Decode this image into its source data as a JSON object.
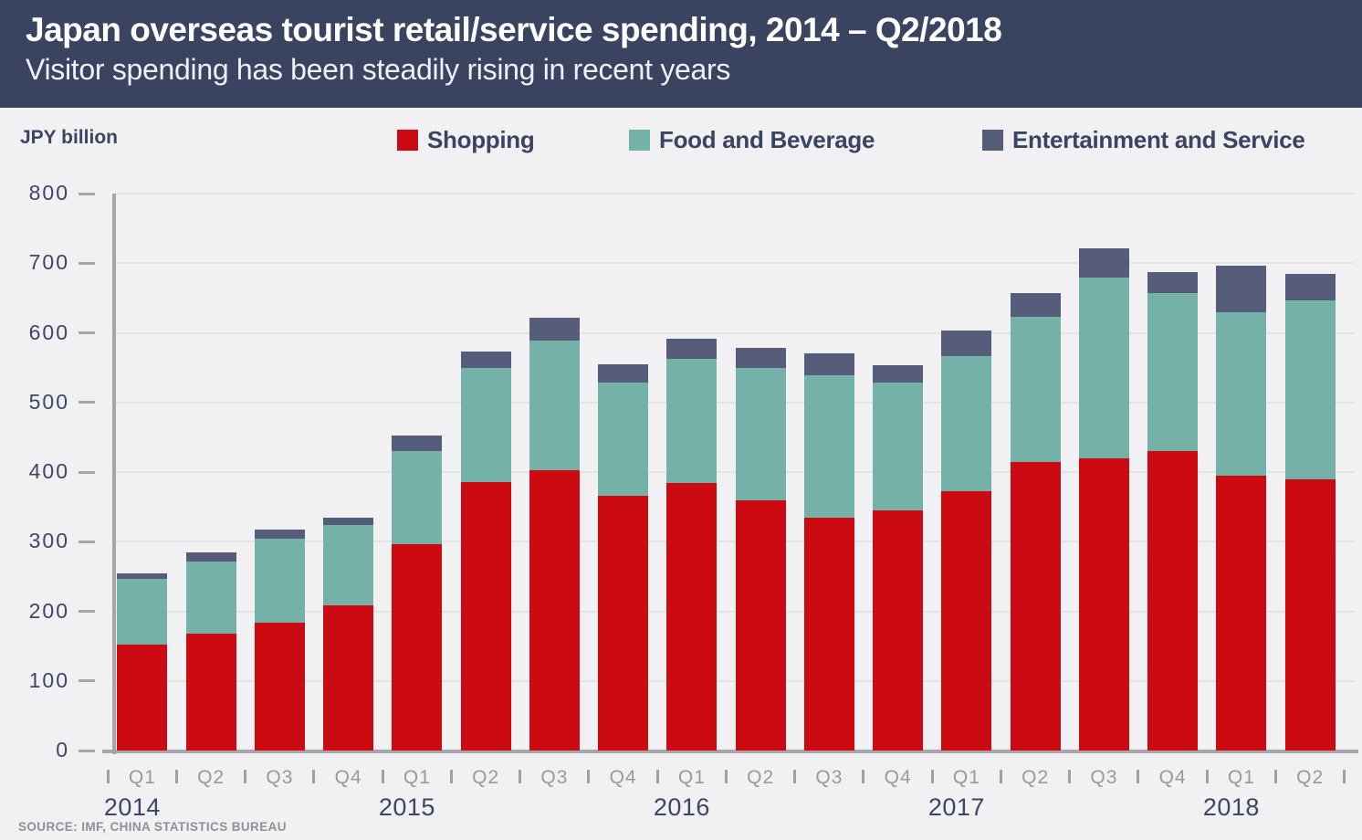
{
  "header": {
    "title": "Japan overseas tourist retail/service spending, 2014 – Q2/2018",
    "subtitle": "Visitor spending has been steadily rising in recent years"
  },
  "colors": {
    "header_background": "#3a4360",
    "page_background": "#f1f1f3",
    "shopping_red": "#cb0b11",
    "food_beverage_teal": "#74b1a6",
    "entertainment_slate": "#555d7b",
    "navy_text": "#3b4562",
    "gray_text": "#98999e",
    "axis_gray": "#a6a6aa",
    "gridline_gray": "#e4e4e6"
  },
  "chart_data": {
    "type": "bar",
    "stacked": true,
    "title": "Japan overseas tourist retail/service spending, 2014 – Q2/2018",
    "subtitle": "Visitor spending has been steadily rising in recent years",
    "unit_label": "JPY billion",
    "source": "SOURCE: IMF, CHINA STATISTICS BUREAU",
    "x_categories": [
      "Q1",
      "Q2",
      "Q3",
      "Q4",
      "Q1",
      "Q2",
      "Q3",
      "Q4",
      "Q1",
      "Q2",
      "Q3",
      "Q4",
      "Q1",
      "Q2",
      "Q3",
      "Q4",
      "Q1",
      "Q2"
    ],
    "x_years": [
      {
        "label": "2014",
        "quarter_index": 0
      },
      {
        "label": "2015",
        "quarter_index": 4
      },
      {
        "label": "2016",
        "quarter_index": 8
      },
      {
        "label": "2017",
        "quarter_index": 12
      },
      {
        "label": "2018",
        "quarter_index": 16
      }
    ],
    "series": [
      {
        "name": "Shopping",
        "color": "#cb0b11",
        "values": [
          152,
          168,
          184,
          208,
          296,
          385,
          403,
          366,
          384,
          360,
          335,
          345,
          373,
          414,
          420,
          430,
          395,
          389
        ]
      },
      {
        "name": "Food and Beverage",
        "color": "#74b1a6",
        "values": [
          94,
          104,
          120,
          116,
          134,
          165,
          186,
          162,
          178,
          190,
          204,
          183,
          193,
          209,
          259,
          227,
          234,
          258
        ]
      },
      {
        "name": "Entertainment and Service",
        "color": "#555d7b",
        "values": [
          9,
          13,
          14,
          11,
          22,
          23,
          33,
          27,
          30,
          29,
          32,
          25,
          37,
          34,
          42,
          30,
          68,
          38
        ]
      }
    ],
    "totals": [
      255,
      285,
      318,
      335,
      452,
      573,
      622,
      555,
      592,
      579,
      571,
      553,
      603,
      657,
      721,
      687,
      697,
      685
    ],
    "ylabel": "JPY billion",
    "ylim": [
      0,
      800
    ],
    "ytick_interval": 100,
    "grid": true,
    "legend_position": "top"
  }
}
